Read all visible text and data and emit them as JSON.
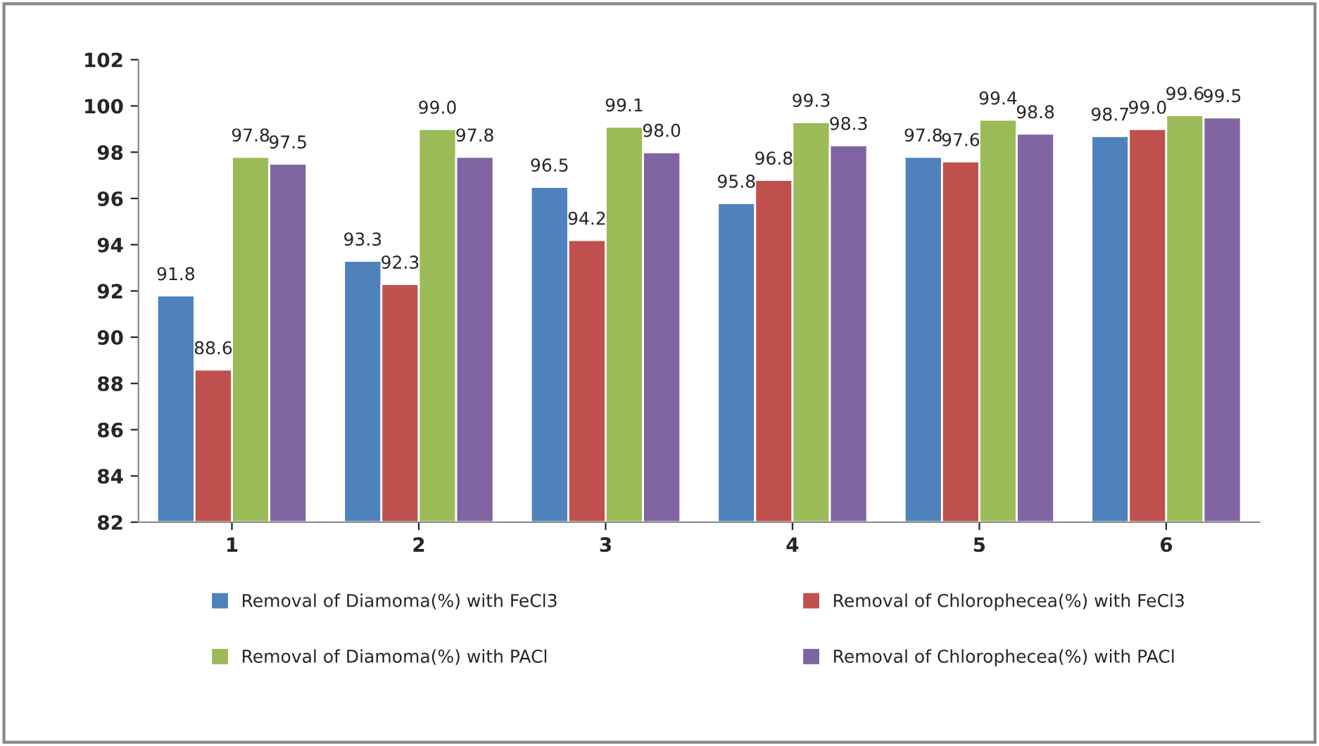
{
  "chart_data": {
    "type": "bar",
    "categories": [
      "1",
      "2",
      "3",
      "4",
      "5",
      "6"
    ],
    "series": [
      {
        "name": "Removal of Diamoma(%) with FeCl3",
        "color": "#4f81bd",
        "values": [
          91.8,
          93.3,
          96.5,
          95.8,
          97.8,
          98.7
        ],
        "value_labels": [
          "91.8",
          "93.3",
          "96.5",
          "95.8",
          "97.8",
          "98.7"
        ]
      },
      {
        "name": "Removal of Chlorophecea(%) with FeCl3",
        "color": "#c0504d",
        "values": [
          88.6,
          92.3,
          94.2,
          96.8,
          97.6,
          99.0
        ],
        "value_labels": [
          "88.6",
          "92.3",
          "94.2",
          "96.8",
          "97.6",
          "99.0"
        ]
      },
      {
        "name": "Removal of Diamoma(%) with PACl",
        "color": "#9bbb59",
        "values": [
          97.8,
          99.0,
          99.1,
          99.3,
          99.4,
          99.6
        ],
        "value_labels": [
          "97.8",
          "99.0",
          "99.1",
          "99.3",
          "99.4",
          "99.6"
        ]
      },
      {
        "name": "Removal of Chlorophecea(%) with PACl",
        "color": "#8064a2",
        "values": [
          97.5,
          97.8,
          98.0,
          98.3,
          98.8,
          99.5
        ],
        "value_labels": [
          "97.5",
          "97.8",
          "98.0",
          "98.3",
          "98.8",
          "99.5"
        ]
      }
    ],
    "ylim": [
      82,
      102
    ],
    "yticks": [
      82,
      84,
      86,
      88,
      90,
      92,
      94,
      96,
      98,
      100,
      102
    ],
    "grid": false,
    "legend": "bottom"
  }
}
